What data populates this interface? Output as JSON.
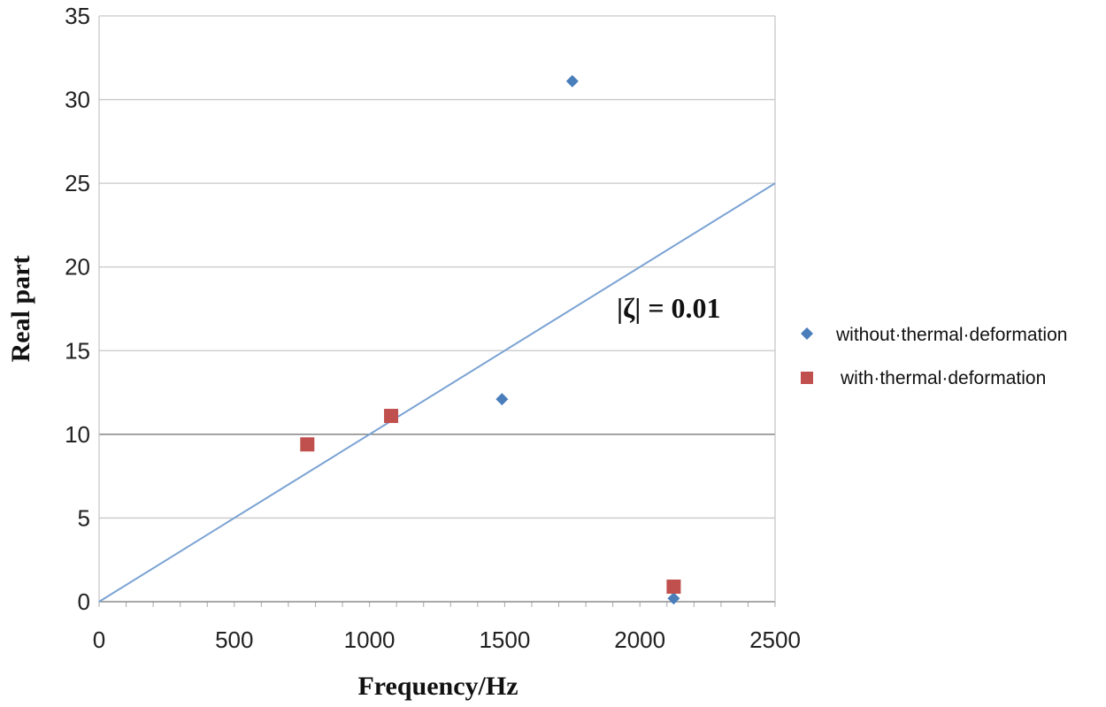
{
  "chart_data": {
    "type": "scatter",
    "title": "",
    "xlabel": "Frequency/Hz",
    "ylabel": "Real part",
    "xlim": [
      0,
      2500
    ],
    "ylim": [
      0,
      35
    ],
    "xticks": [
      "0",
      "500",
      "1000",
      "1500",
      "2000",
      "2500"
    ],
    "yticks": [
      "0",
      "5",
      "10",
      "15",
      "20",
      "25",
      "30",
      "35"
    ],
    "grid": true,
    "legend_position": "right",
    "series": [
      {
        "name": "without·thermal·deformation",
        "marker": "diamond",
        "color": "#4a7ebb",
        "points": [
          [
            1490,
            12.1
          ],
          [
            1750,
            31.1
          ],
          [
            2125,
            0.2
          ]
        ]
      },
      {
        "name": "with·thermal·deformation",
        "marker": "square",
        "color": "#c0504d",
        "points": [
          [
            770,
            9.4
          ],
          [
            1080,
            11.1
          ],
          [
            2125,
            0.9
          ]
        ]
      }
    ],
    "reference_line": {
      "color": "#7ba3d4",
      "points": [
        [
          0,
          0
        ],
        [
          2500,
          25
        ]
      ]
    },
    "annotation": "|ζ| = 0.01"
  }
}
